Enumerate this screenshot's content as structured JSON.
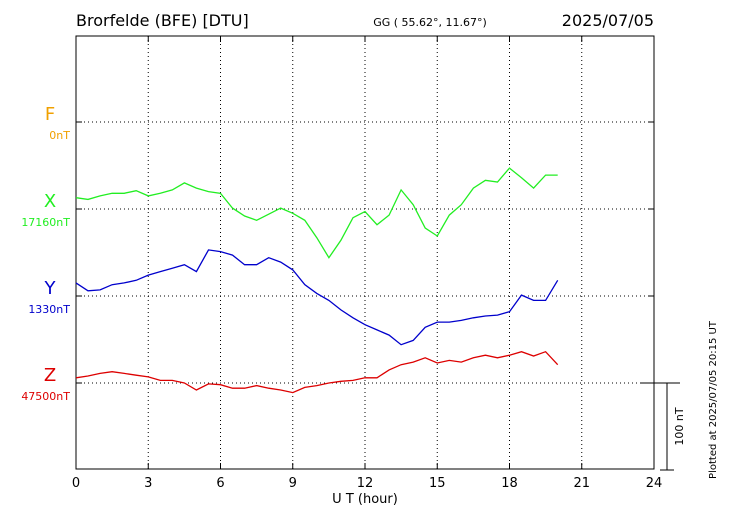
{
  "chart_data": {
    "type": "line",
    "title": "Brorfelde (BFE)  [DTU]",
    "subtitle": "GG ( 55.62°,  11.67°)",
    "date": "2025/07/05",
    "x_label": "U T (hour)",
    "footnote": "Plotted at 2025/07/05 20:15 UT",
    "scale_bar": {
      "value": 100,
      "label": "100 nT"
    },
    "xlim": [
      0,
      24
    ],
    "xticks": [
      0,
      3,
      6,
      9,
      12,
      15,
      18,
      21,
      24
    ],
    "grid": true,
    "x": [
      0,
      0.5,
      1,
      1.5,
      2,
      2.5,
      3,
      3.5,
      4,
      4.5,
      5,
      5.5,
      6,
      6.5,
      7,
      7.5,
      8,
      8.5,
      9,
      9.5,
      10,
      10.5,
      11,
      11.5,
      12,
      12.5,
      13,
      13.5,
      14,
      14.5,
      15,
      15.5,
      16,
      16.5,
      17,
      17.5,
      18,
      18.5,
      19,
      19.5,
      20
    ],
    "series": [
      {
        "name": "F",
        "color": "#f0a000",
        "baseline": {
          "value": 0,
          "label": "0nT"
        },
        "values": [
          null,
          null,
          null,
          null,
          null,
          null,
          null,
          null,
          null,
          null,
          null,
          null,
          null,
          null,
          null,
          null,
          null,
          null,
          null,
          null,
          null,
          null,
          null,
          null,
          null,
          null,
          null,
          null,
          null,
          null,
          null,
          null,
          null,
          null,
          null,
          null,
          null,
          null,
          null,
          null,
          null
        ]
      },
      {
        "name": "X",
        "color": "#22ee22",
        "baseline": {
          "value": 17160,
          "label": "17160nT"
        },
        "values": [
          17173,
          17171,
          17175,
          17178,
          17178,
          17181,
          17175,
          17178,
          17182,
          17190,
          17184,
          17180,
          17178,
          17161,
          17152,
          17147,
          17154,
          17161,
          17155,
          17147,
          17127,
          17104,
          17124,
          17150,
          17157,
          17142,
          17153,
          17182,
          17165,
          17138,
          17129,
          17153,
          17165,
          17184,
          17193,
          17191,
          17207,
          17196,
          17184,
          17199,
          17199
        ]
      },
      {
        "name": "Y",
        "color": "#0000cc",
        "baseline": {
          "value": 1330,
          "label": "1330nT"
        },
        "values": [
          1345,
          1336,
          1337,
          1343,
          1345,
          1348,
          1354,
          1358,
          1362,
          1366,
          1358,
          1383,
          1381,
          1377,
          1366,
          1366,
          1374,
          1369,
          1360,
          1343,
          1333,
          1325,
          1314,
          1305,
          1297,
          1291,
          1285,
          1274,
          1279,
          1294,
          1300,
          1300,
          1302,
          1305,
          1307,
          1308,
          1312,
          1331,
          1325,
          1325,
          1348
        ]
      },
      {
        "name": "Z",
        "color": "#dd0000",
        "baseline": {
          "value": 47500,
          "label": "47500nT"
        },
        "values": [
          47506,
          47508,
          47511,
          47513,
          47511,
          47509,
          47507,
          47503,
          47503,
          47500,
          47492,
          47499,
          47498,
          47494,
          47494,
          47497,
          47494,
          47492,
          47489,
          47495,
          47497,
          47500,
          47502,
          47503,
          47506,
          47506,
          47515,
          47521,
          47524,
          47529,
          47523,
          47526,
          47524,
          47529,
          47532,
          47529,
          47532,
          47536,
          47531,
          47536,
          47521
        ]
      }
    ]
  }
}
